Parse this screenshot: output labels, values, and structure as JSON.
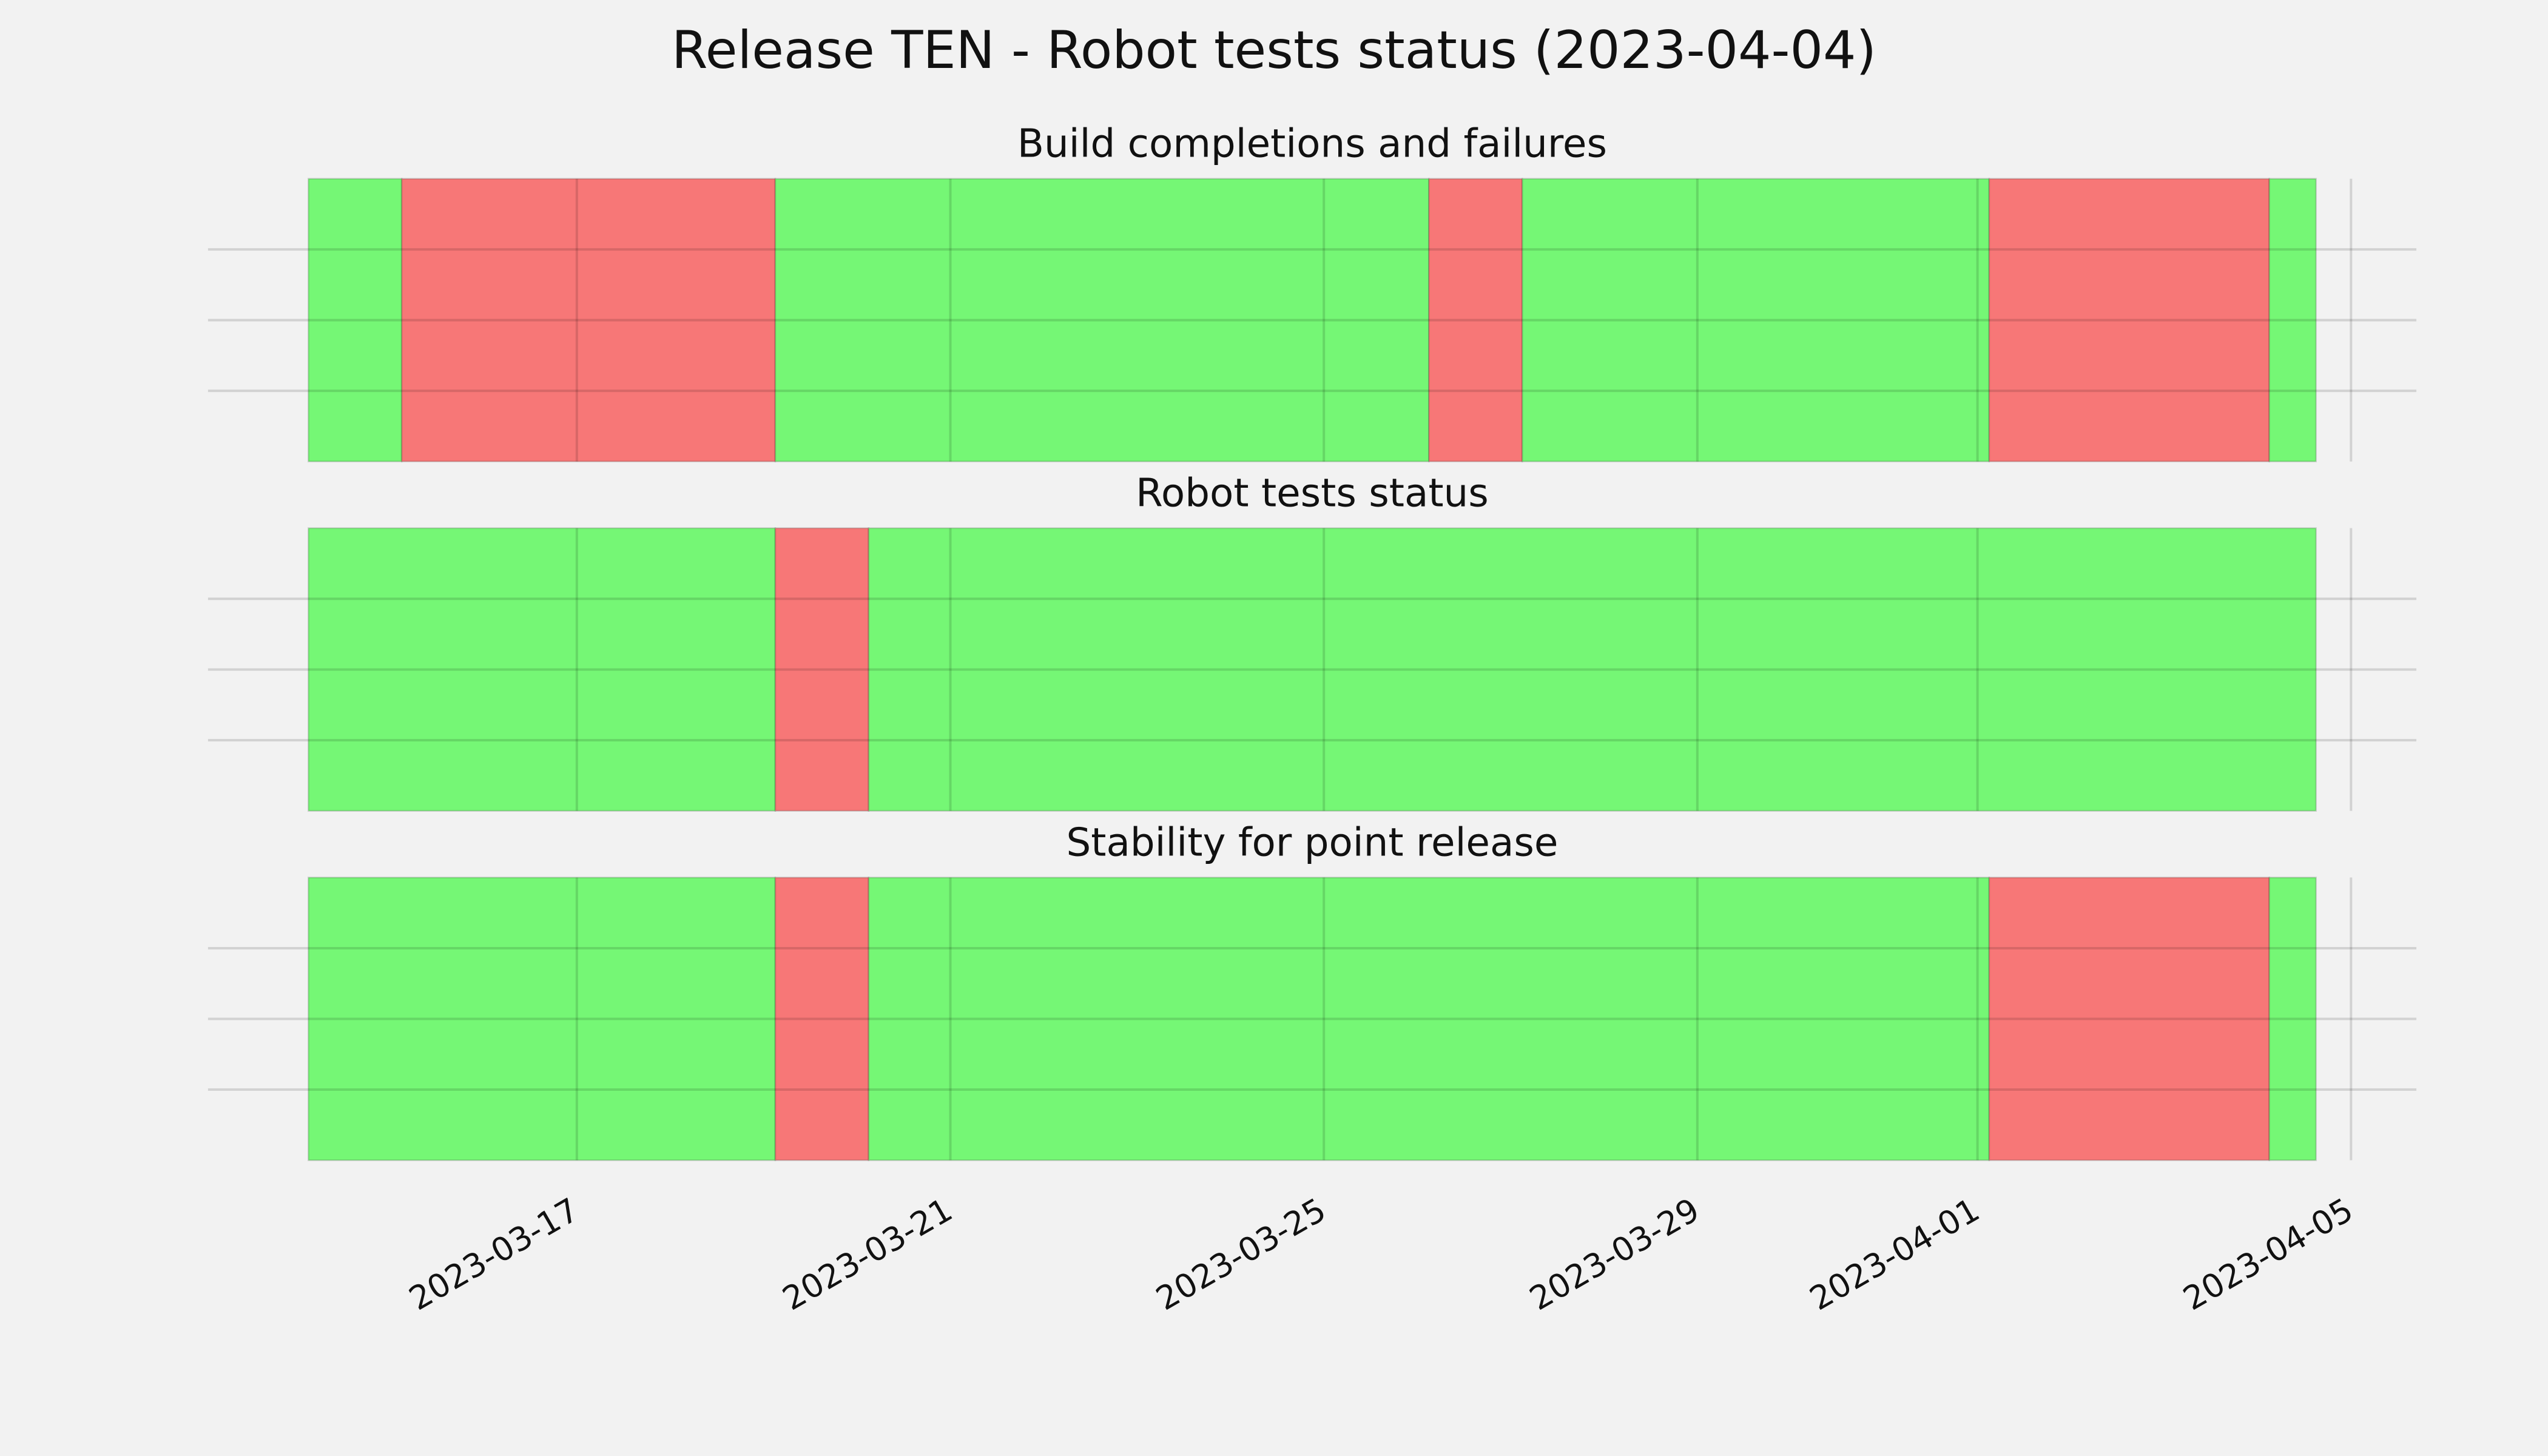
{
  "title": "Release TEN - Robot tests status (2023-04-04)",
  "chart_data": [
    {
      "type": "timeline",
      "title": "Build completions and failures",
      "segments": [
        {
          "start": "2023-03-14T03:00",
          "end": "2023-03-15T03:00",
          "color": "#75f775"
        },
        {
          "start": "2023-03-15T03:00",
          "end": "2023-03-19T03:00",
          "color": "#f77777"
        },
        {
          "start": "2023-03-19T03:00",
          "end": "2023-03-26T03:00",
          "color": "#75f775"
        },
        {
          "start": "2023-03-26T03:00",
          "end": "2023-03-27T03:00",
          "color": "#f77777"
        },
        {
          "start": "2023-03-27T03:00",
          "end": "2023-04-01T03:00",
          "color": "#75f775"
        },
        {
          "start": "2023-04-01T03:00",
          "end": "2023-04-04T03:00",
          "color": "#f77777"
        },
        {
          "start": "2023-04-04T03:00",
          "end": "2023-04-04T15:00",
          "color": "#75f775"
        }
      ],
      "xlim": [
        "2023-03-13T01:12",
        "2023-04-05T16:48"
      ],
      "xticks": [
        "2023-03-17",
        "2023-03-21",
        "2023-03-25",
        "2023-03-29",
        "2023-04-01",
        "2023-04-05"
      ],
      "ylim": [
        0,
        1
      ],
      "yticks": [
        0.25,
        0.5,
        0.75
      ],
      "grid": true
    },
    {
      "type": "timeline",
      "title": "Robot tests status",
      "segments": [
        {
          "start": "2023-03-14T03:00",
          "end": "2023-03-19T03:00",
          "color": "#75f775"
        },
        {
          "start": "2023-03-19T03:00",
          "end": "2023-03-20T03:00",
          "color": "#f77777"
        },
        {
          "start": "2023-03-20T03:00",
          "end": "2023-04-04T15:00",
          "color": "#75f775"
        }
      ],
      "xlim": [
        "2023-03-13T01:12",
        "2023-04-05T16:48"
      ],
      "xticks": [
        "2023-03-17",
        "2023-03-21",
        "2023-03-25",
        "2023-03-29",
        "2023-04-01",
        "2023-04-05"
      ],
      "ylim": [
        0,
        1
      ],
      "yticks": [
        0.25,
        0.5,
        0.75
      ],
      "grid": true
    },
    {
      "type": "timeline",
      "title": "Stability for point release",
      "segments": [
        {
          "start": "2023-03-14T03:00",
          "end": "2023-03-19T03:00",
          "color": "#75f775"
        },
        {
          "start": "2023-03-19T03:00",
          "end": "2023-03-20T03:00",
          "color": "#f77777"
        },
        {
          "start": "2023-03-20T03:00",
          "end": "2023-04-01T03:00",
          "color": "#75f775"
        },
        {
          "start": "2023-04-01T03:00",
          "end": "2023-04-04T03:00",
          "color": "#f77777"
        },
        {
          "start": "2023-04-04T03:00",
          "end": "2023-04-04T15:00",
          "color": "#75f775"
        }
      ],
      "xlim": [
        "2023-03-13T01:12",
        "2023-04-05T16:48"
      ],
      "xticks": [
        "2023-03-17",
        "2023-03-21",
        "2023-03-25",
        "2023-03-29",
        "2023-04-01",
        "2023-04-05"
      ],
      "ylim": [
        0,
        1
      ],
      "yticks": [
        0.25,
        0.5,
        0.75
      ],
      "grid": true
    }
  ]
}
